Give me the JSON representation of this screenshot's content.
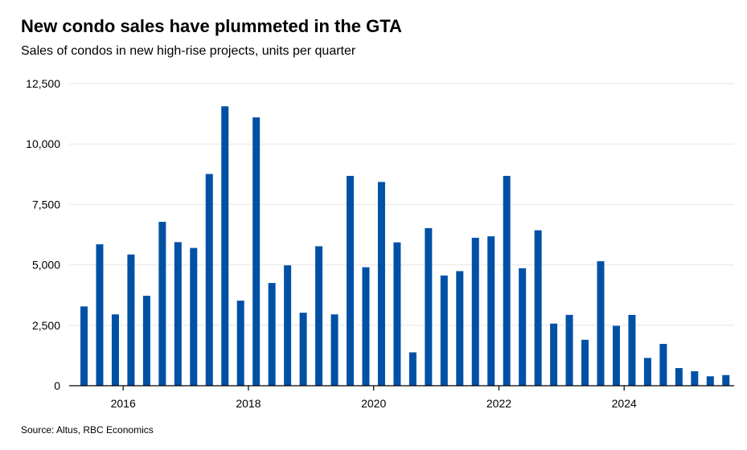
{
  "header": {
    "title": "New condo sales have plummeted in the GTA",
    "subtitle": "Sales of condos in new high-rise projects, units per quarter"
  },
  "footer": {
    "source": "Source: Altus, RBC Economics"
  },
  "colors": {
    "bar": "#0051a5",
    "grid": "#e6e6e6",
    "axis": "#000000"
  },
  "chart_data": {
    "type": "bar",
    "title": "New condo sales have plummeted in the GTA",
    "subtitle": "Sales of condos in new high-rise projects, units per quarter",
    "xlabel": "",
    "ylabel": "",
    "ylim": [
      0,
      12500
    ],
    "yticks": [
      0,
      2500,
      5000,
      7500,
      10000,
      12500
    ],
    "ytick_labels": [
      "0",
      "2,500",
      "5,000",
      "7,500",
      "10,000",
      "12,500"
    ],
    "xticks": [
      {
        "label": "2016",
        "index": 3
      },
      {
        "label": "2018",
        "index": 11
      },
      {
        "label": "2020",
        "index": 19
      },
      {
        "label": "2022",
        "index": 27
      },
      {
        "label": "2024",
        "index": 35
      }
    ],
    "grid": true,
    "categories": [
      "2015 Q2",
      "2015 Q3",
      "2015 Q4",
      "2016 Q1",
      "2016 Q2",
      "2016 Q3",
      "2016 Q4",
      "2017 Q1",
      "2017 Q2",
      "2017 Q3",
      "2017 Q4",
      "2018 Q1",
      "2018 Q2",
      "2018 Q3",
      "2018 Q4",
      "2019 Q1",
      "2019 Q2",
      "2019 Q3",
      "2019 Q4",
      "2020 Q1",
      "2020 Q2",
      "2020 Q3",
      "2020 Q4",
      "2021 Q1",
      "2021 Q2",
      "2021 Q3",
      "2021 Q4",
      "2022 Q1",
      "2022 Q2",
      "2022 Q3",
      "2022 Q4",
      "2023 Q1",
      "2023 Q2",
      "2023 Q3",
      "2023 Q4",
      "2024 Q1",
      "2024 Q2",
      "2024 Q3",
      "2024 Q4",
      "2025 Q1",
      "2025 Q2",
      "2025 Q3"
    ],
    "values": [
      3280,
      5850,
      2950,
      5430,
      3720,
      6780,
      5940,
      5700,
      8760,
      11560,
      3520,
      11100,
      4250,
      4980,
      3020,
      5770,
      2950,
      8680,
      4900,
      8430,
      5930,
      1380,
      6520,
      4560,
      4740,
      6120,
      6180,
      8680,
      4860,
      6430,
      2570,
      2930,
      1900,
      5150,
      2480,
      2930,
      1150,
      1730,
      730,
      600,
      390,
      440
    ]
  }
}
